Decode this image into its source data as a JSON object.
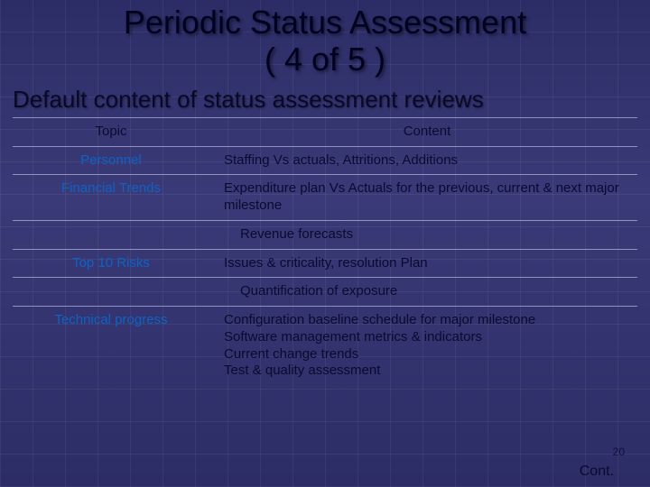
{
  "colors": {
    "background_top": "#2c2c66",
    "background_mid": "#3a3a78",
    "grid_line": "rgba(255,255,255,0.06)",
    "title_text": "#000020",
    "body_text": "#0a0a30",
    "topic_text": "#0d63c4",
    "rule_line": "rgba(220,220,255,0.55)"
  },
  "typography": {
    "title_fontsize": 36,
    "subtitle_fontsize": 26,
    "body_fontsize": 15,
    "font_family": "Arial"
  },
  "title": {
    "line1": "Periodic Status Assessment",
    "line2": "( 4 of 5 )"
  },
  "subtitle": "Default content of status assessment reviews",
  "table": {
    "header": {
      "topic": "Topic",
      "content": "Content"
    },
    "rows": [
      {
        "topic": "Personnel",
        "content": "Staffing Vs actuals, Attritions, Additions"
      },
      {
        "topic": "Financial Trends",
        "content": "Expenditure plan Vs Actuals for the previous, current & next major milestone"
      },
      {
        "topic": "",
        "content": "Revenue forecasts"
      },
      {
        "topic": "Top 10 Risks",
        "content": "Issues & criticality, resolution Plan"
      },
      {
        "topic": "",
        "content": "Quantification of exposure"
      },
      {
        "topic": "Technical progress",
        "content_lines": [
          "Configuration baseline schedule for major milestone",
          "Software management metrics & indicators",
          "Current change trends",
          "Test & quality assessment"
        ]
      }
    ]
  },
  "slide_number": "20",
  "cont_label": "Cont."
}
